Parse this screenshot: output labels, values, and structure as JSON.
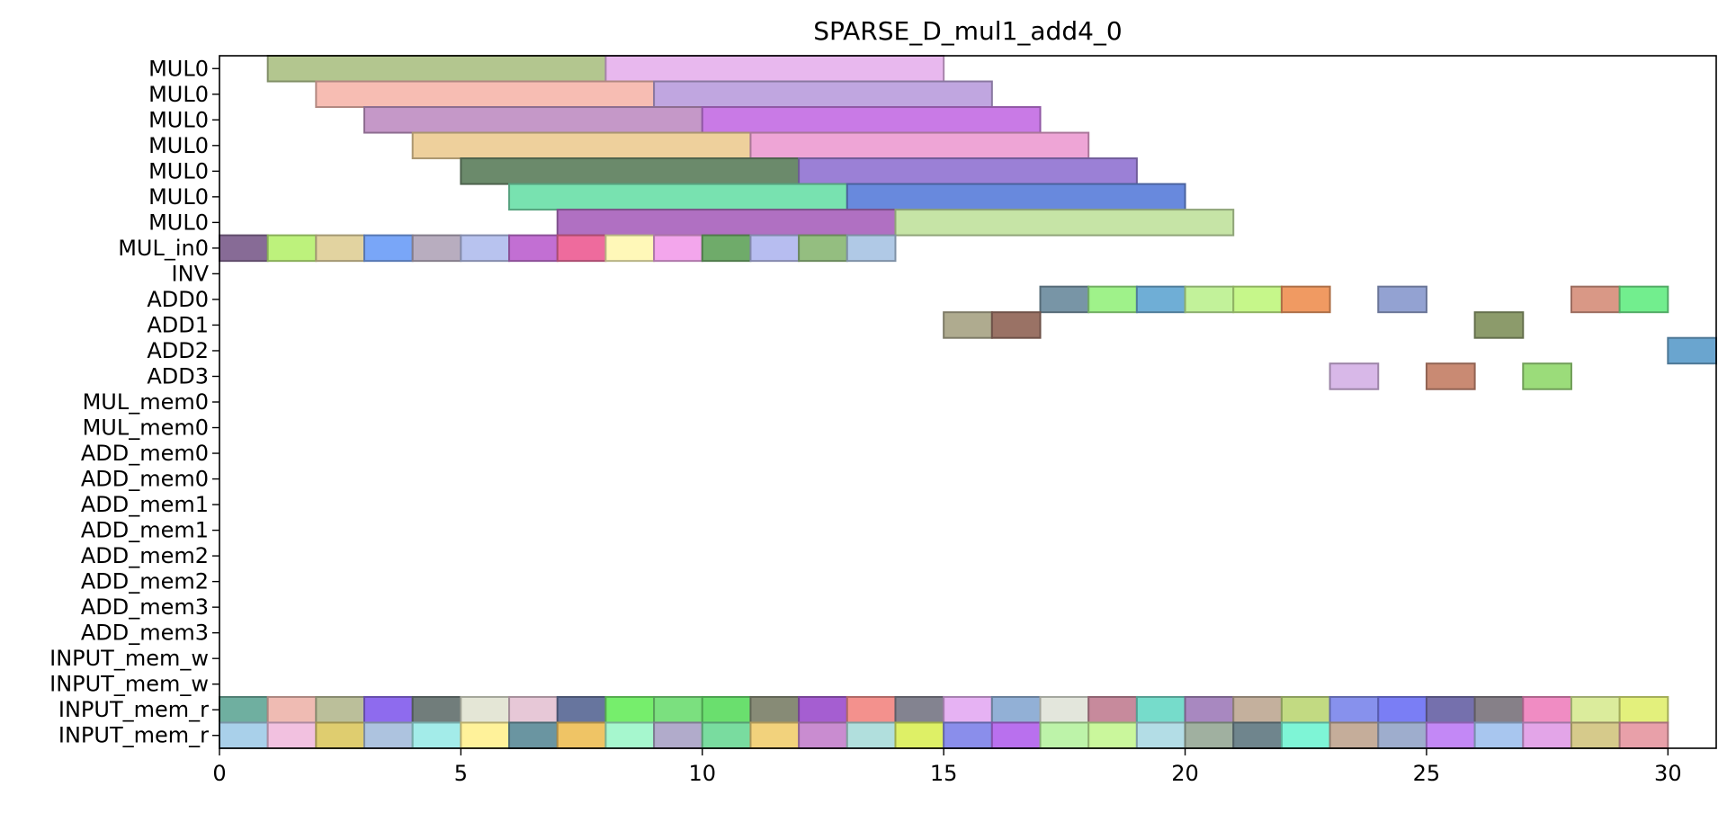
{
  "chart_data": {
    "type": "gantt",
    "title": "SPARSE_D_mul1_add4_0",
    "xlabel": "",
    "ylabel": "",
    "xlim": [
      0,
      31
    ],
    "xticks": [
      0,
      5,
      10,
      15,
      20,
      25,
      30
    ],
    "rows": [
      "MUL0",
      "MUL0",
      "MUL0",
      "MUL0",
      "MUL0",
      "MUL0",
      "MUL0",
      "MUL_in0",
      "INV",
      "ADD0",
      "ADD1",
      "ADD2",
      "ADD3",
      "MUL_mem0",
      "MUL_mem0",
      "ADD_mem0",
      "ADD_mem0",
      "ADD_mem1",
      "ADD_mem1",
      "ADD_mem2",
      "ADD_mem2",
      "ADD_mem3",
      "ADD_mem3",
      "INPUT_mem_w",
      "INPUT_mem_w",
      "INPUT_mem_r",
      "INPUT_mem_r"
    ],
    "tasks": [
      {
        "row": 0,
        "start": 1,
        "end": 8,
        "color": "#b3c68f"
      },
      {
        "row": 0,
        "start": 8,
        "end": 15,
        "color": "#e8b8ee"
      },
      {
        "row": 1,
        "start": 2,
        "end": 9,
        "color": "#f7bdb3"
      },
      {
        "row": 1,
        "start": 9,
        "end": 16,
        "color": "#c0a6e0"
      },
      {
        "row": 2,
        "start": 3,
        "end": 10,
        "color": "#c598c8"
      },
      {
        "row": 2,
        "start": 10,
        "end": 17,
        "color": "#c97ae6"
      },
      {
        "row": 3,
        "start": 4,
        "end": 11,
        "color": "#eed09c"
      },
      {
        "row": 3,
        "start": 11,
        "end": 18,
        "color": "#eea5d6"
      },
      {
        "row": 4,
        "start": 5,
        "end": 12,
        "color": "#6b8a6b"
      },
      {
        "row": 4,
        "start": 12,
        "end": 19,
        "color": "#9b80d6"
      },
      {
        "row": 5,
        "start": 6,
        "end": 13,
        "color": "#78e2b0"
      },
      {
        "row": 5,
        "start": 13,
        "end": 20,
        "color": "#6889dd"
      },
      {
        "row": 6,
        "start": 7,
        "end": 14,
        "color": "#b070c2"
      },
      {
        "row": 6,
        "start": 14,
        "end": 21,
        "color": "#c6e4a6"
      },
      {
        "row": 7,
        "start": 0,
        "end": 1,
        "color": "#876b96"
      },
      {
        "row": 7,
        "start": 1,
        "end": 2,
        "color": "#bdf27c"
      },
      {
        "row": 7,
        "start": 2,
        "end": 3,
        "color": "#e2d3a0"
      },
      {
        "row": 7,
        "start": 3,
        "end": 4,
        "color": "#79a6f8"
      },
      {
        "row": 7,
        "start": 4,
        "end": 5,
        "color": "#b8adbf"
      },
      {
        "row": 7,
        "start": 5,
        "end": 6,
        "color": "#b8c3ef"
      },
      {
        "row": 7,
        "start": 6,
        "end": 7,
        "color": "#c26fd3"
      },
      {
        "row": 7,
        "start": 7,
        "end": 8,
        "color": "#ee6b9d"
      },
      {
        "row": 7,
        "start": 8,
        "end": 9,
        "color": "#fff8b8"
      },
      {
        "row": 7,
        "start": 9,
        "end": 10,
        "color": "#f3a6ec"
      },
      {
        "row": 7,
        "start": 10,
        "end": 11,
        "color": "#6fab6a"
      },
      {
        "row": 7,
        "start": 11,
        "end": 12,
        "color": "#b7bdf0"
      },
      {
        "row": 7,
        "start": 12,
        "end": 13,
        "color": "#94be80"
      },
      {
        "row": 7,
        "start": 13,
        "end": 14,
        "color": "#b0c9e6"
      },
      {
        "row": 9,
        "start": 17,
        "end": 18,
        "color": "#7895a6"
      },
      {
        "row": 9,
        "start": 18,
        "end": 19,
        "color": "#9ff28a"
      },
      {
        "row": 9,
        "start": 19,
        "end": 20,
        "color": "#6faed6"
      },
      {
        "row": 9,
        "start": 20,
        "end": 21,
        "color": "#c2f29a"
      },
      {
        "row": 9,
        "start": 21,
        "end": 22,
        "color": "#c6f78a"
      },
      {
        "row": 9,
        "start": 22,
        "end": 23,
        "color": "#f09a62"
      },
      {
        "row": 9,
        "start": 24,
        "end": 25,
        "color": "#93a2d2"
      },
      {
        "row": 9,
        "start": 28,
        "end": 29,
        "color": "#d99886"
      },
      {
        "row": 9,
        "start": 29,
        "end": 30,
        "color": "#72ee8e"
      },
      {
        "row": 10,
        "start": 15,
        "end": 16,
        "color": "#afab8f"
      },
      {
        "row": 10,
        "start": 16,
        "end": 17,
        "color": "#9a7265"
      },
      {
        "row": 10,
        "start": 26,
        "end": 27,
        "color": "#8c9b6b"
      },
      {
        "row": 11,
        "start": 30,
        "end": 31,
        "color": "#6aa5cf"
      },
      {
        "row": 12,
        "start": 23,
        "end": 24,
        "color": "#d8b8e8"
      },
      {
        "row": 12,
        "start": 25,
        "end": 26,
        "color": "#c98a73"
      },
      {
        "row": 12,
        "start": 27,
        "end": 28,
        "color": "#9bdc7a"
      },
      {
        "row": 25,
        "start": 0,
        "end": 1,
        "color": "#6fafa0"
      },
      {
        "row": 25,
        "start": 1,
        "end": 2,
        "color": "#efbbb3"
      },
      {
        "row": 25,
        "start": 2,
        "end": 3,
        "color": "#bbbf9a"
      },
      {
        "row": 25,
        "start": 3,
        "end": 4,
        "color": "#8e6bee"
      },
      {
        "row": 25,
        "start": 4,
        "end": 5,
        "color": "#717d7b"
      },
      {
        "row": 25,
        "start": 5,
        "end": 6,
        "color": "#e4e6d6"
      },
      {
        "row": 25,
        "start": 6,
        "end": 7,
        "color": "#e7c8d7"
      },
      {
        "row": 25,
        "start": 7,
        "end": 8,
        "color": "#67759e"
      },
      {
        "row": 25,
        "start": 8,
        "end": 9,
        "color": "#76ee6c"
      },
      {
        "row": 25,
        "start": 9,
        "end": 10,
        "color": "#7be07f"
      },
      {
        "row": 25,
        "start": 10,
        "end": 11,
        "color": "#6adf6e"
      },
      {
        "row": 25,
        "start": 11,
        "end": 12,
        "color": "#878b76"
      },
      {
        "row": 25,
        "start": 12,
        "end": 13,
        "color": "#a55ed1"
      },
      {
        "row": 25,
        "start": 13,
        "end": 14,
        "color": "#f3918d"
      },
      {
        "row": 25,
        "start": 14,
        "end": 15,
        "color": "#838390"
      },
      {
        "row": 25,
        "start": 15,
        "end": 16,
        "color": "#e6b2f3"
      },
      {
        "row": 25,
        "start": 16,
        "end": 17,
        "color": "#92b0d6"
      },
      {
        "row": 25,
        "start": 17,
        "end": 18,
        "color": "#e3e6dc"
      },
      {
        "row": 25,
        "start": 18,
        "end": 19,
        "color": "#c78a9c"
      },
      {
        "row": 25,
        "start": 19,
        "end": 20,
        "color": "#76dccb"
      },
      {
        "row": 25,
        "start": 20,
        "end": 21,
        "color": "#a888c0"
      },
      {
        "row": 25,
        "start": 21,
        "end": 22,
        "color": "#c4b09d"
      },
      {
        "row": 25,
        "start": 22,
        "end": 23,
        "color": "#c2da82"
      },
      {
        "row": 25,
        "start": 23,
        "end": 24,
        "color": "#8791ed"
      },
      {
        "row": 25,
        "start": 24,
        "end": 25,
        "color": "#7a7ef5"
      },
      {
        "row": 25,
        "start": 25,
        "end": 26,
        "color": "#7570ad"
      },
      {
        "row": 25,
        "start": 26,
        "end": 27,
        "color": "#868088"
      },
      {
        "row": 25,
        "start": 27,
        "end": 28,
        "color": "#f08cc3"
      },
      {
        "row": 25,
        "start": 28,
        "end": 29,
        "color": "#dbec9c"
      },
      {
        "row": 25,
        "start": 29,
        "end": 30,
        "color": "#e3f07c"
      },
      {
        "row": 26,
        "start": 0,
        "end": 1,
        "color": "#a9d0ea"
      },
      {
        "row": 26,
        "start": 1,
        "end": 2,
        "color": "#f2c1e0"
      },
      {
        "row": 26,
        "start": 2,
        "end": 3,
        "color": "#dfcd6f"
      },
      {
        "row": 26,
        "start": 3,
        "end": 4,
        "color": "#adc3df"
      },
      {
        "row": 26,
        "start": 4,
        "end": 5,
        "color": "#a3ece9"
      },
      {
        "row": 26,
        "start": 5,
        "end": 6,
        "color": "#fff29a"
      },
      {
        "row": 26,
        "start": 6,
        "end": 7,
        "color": "#6a95a1"
      },
      {
        "row": 26,
        "start": 7,
        "end": 8,
        "color": "#efc465"
      },
      {
        "row": 26,
        "start": 8,
        "end": 9,
        "color": "#a6f7ce"
      },
      {
        "row": 26,
        "start": 9,
        "end": 10,
        "color": "#b1abcb"
      },
      {
        "row": 26,
        "start": 10,
        "end": 11,
        "color": "#79dc9f"
      },
      {
        "row": 26,
        "start": 11,
        "end": 12,
        "color": "#f2d27c"
      },
      {
        "row": 26,
        "start": 12,
        "end": 13,
        "color": "#c98cd0"
      },
      {
        "row": 26,
        "start": 13,
        "end": 14,
        "color": "#b1dfdd"
      },
      {
        "row": 26,
        "start": 14,
        "end": 15,
        "color": "#def066"
      },
      {
        "row": 26,
        "start": 15,
        "end": 16,
        "color": "#8a8eeb"
      },
      {
        "row": 26,
        "start": 16,
        "end": 17,
        "color": "#b970ee"
      },
      {
        "row": 26,
        "start": 17,
        "end": 18,
        "color": "#bdf3a9"
      },
      {
        "row": 26,
        "start": 18,
        "end": 19,
        "color": "#caf79c"
      },
      {
        "row": 26,
        "start": 19,
        "end": 20,
        "color": "#b3dde6"
      },
      {
        "row": 26,
        "start": 20,
        "end": 21,
        "color": "#a0b0a0"
      },
      {
        "row": 26,
        "start": 21,
        "end": 22,
        "color": "#6f858d"
      },
      {
        "row": 26,
        "start": 22,
        "end": 23,
        "color": "#7ef5d6"
      },
      {
        "row": 26,
        "start": 23,
        "end": 24,
        "color": "#c5ad9a"
      },
      {
        "row": 26,
        "start": 24,
        "end": 25,
        "color": "#9eadcd"
      },
      {
        "row": 26,
        "start": 25,
        "end": 26,
        "color": "#c388f6"
      },
      {
        "row": 26,
        "start": 26,
        "end": 27,
        "color": "#a8c6ef"
      },
      {
        "row": 26,
        "start": 27,
        "end": 28,
        "color": "#e3a5e8"
      },
      {
        "row": 26,
        "start": 28,
        "end": 29,
        "color": "#d6ca8b"
      },
      {
        "row": 26,
        "start": 29,
        "end": 30,
        "color": "#e8a0a9"
      }
    ]
  }
}
